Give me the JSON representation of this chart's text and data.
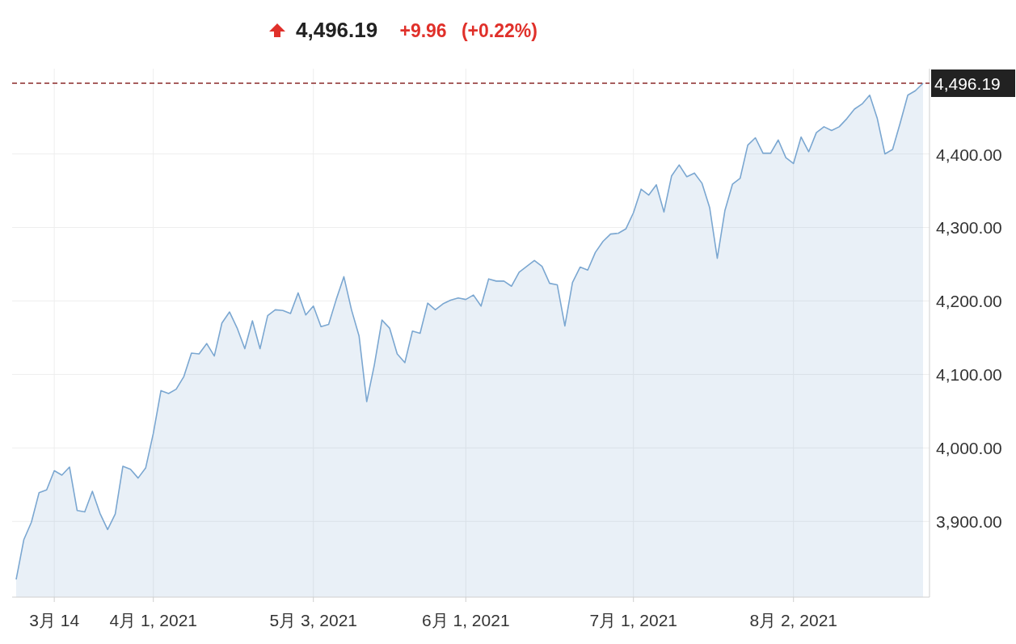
{
  "chart_data": {
    "type": "area",
    "annotations": [
      "4,496.19",
      "+9.96",
      "(+0.22%)"
    ],
    "categories": [
      null,
      null,
      null,
      null,
      null,
      "3月 14",
      null,
      null,
      null,
      null,
      null,
      null,
      null,
      null,
      null,
      null,
      null,
      null,
      "4月 1, 2021",
      null,
      null,
      null,
      null,
      null,
      null,
      null,
      null,
      null,
      null,
      null,
      null,
      null,
      null,
      null,
      null,
      null,
      null,
      null,
      null,
      "5月 3, 2021",
      null,
      null,
      null,
      null,
      null,
      null,
      null,
      null,
      null,
      null,
      null,
      null,
      null,
      null,
      null,
      null,
      null,
      null,
      null,
      "6月 1, 2021",
      null,
      null,
      null,
      null,
      null,
      null,
      null,
      null,
      null,
      null,
      null,
      null,
      null,
      null,
      null,
      null,
      null,
      null,
      null,
      null,
      null,
      "7月 1, 2021",
      null,
      null,
      null,
      null,
      null,
      null,
      null,
      null,
      null,
      null,
      null,
      null,
      null,
      null,
      null,
      null,
      null,
      null,
      null,
      null,
      "8月 2, 2021",
      null,
      null,
      null,
      null,
      null,
      null,
      null,
      null,
      null,
      null,
      null,
      null,
      null,
      null,
      null,
      null,
      null
    ],
    "series": [
      {
        "color": "#7ba7d1",
        "values": [
          3821,
          3875,
          3899,
          3939,
          3943,
          3969,
          3963,
          3974,
          3915,
          3913,
          3941,
          3911,
          3889,
          3910,
          3975,
          3971,
          3959,
          3973,
          4020,
          4078,
          4074,
          4080,
          4097,
          4129,
          4128,
          4142,
          4125,
          4170,
          4185,
          4163,
          4135,
          4173,
          4135,
          4180,
          4188,
          4187,
          4183,
          4211,
          4181,
          4193,
          4165,
          4168,
          4202,
          4233,
          4188,
          4152,
          4063,
          4113,
          4174,
          4163,
          4128,
          4116,
          4159,
          4156,
          4197,
          4188,
          4196,
          4201,
          4204,
          4202,
          4208,
          4193,
          4230,
          4227,
          4227,
          4220,
          4239,
          4247,
          4255,
          4247,
          4224,
          4222,
          4166,
          4225,
          4246,
          4242,
          4266,
          4281,
          4291,
          4292,
          4298,
          4320,
          4352,
          4344,
          4358,
          4321,
          4370,
          4385,
          4369,
          4374,
          4360,
          4327,
          4258,
          4323,
          4359,
          4367,
          4412,
          4422,
          4401,
          4401,
          4419,
          4395,
          4387,
          4423,
          4403,
          4429,
          4437,
          4432,
          4437,
          4448,
          4461,
          4468,
          4480,
          4448,
          4400,
          4406,
          4442,
          4480,
          4486,
          4496.19
        ]
      }
    ],
    "ylim": [
      3797,
      4516
    ],
    "yticks": [
      {
        "value": 3900,
        "label": "3,900.00"
      },
      {
        "value": 4000,
        "label": "4,000.00"
      },
      {
        "value": 4100,
        "label": "4,100.00"
      },
      {
        "value": 4200,
        "label": "4,200.00"
      },
      {
        "value": 4300,
        "label": "4,300.00"
      },
      {
        "value": 4400,
        "label": "4,400.00"
      }
    ],
    "ref_lines": [
      {
        "axis": "y",
        "value": 4496.19,
        "label": "4,496.19",
        "color": "#8b2a2a",
        "line_style": "dashed"
      }
    ],
    "grid": true
  }
}
